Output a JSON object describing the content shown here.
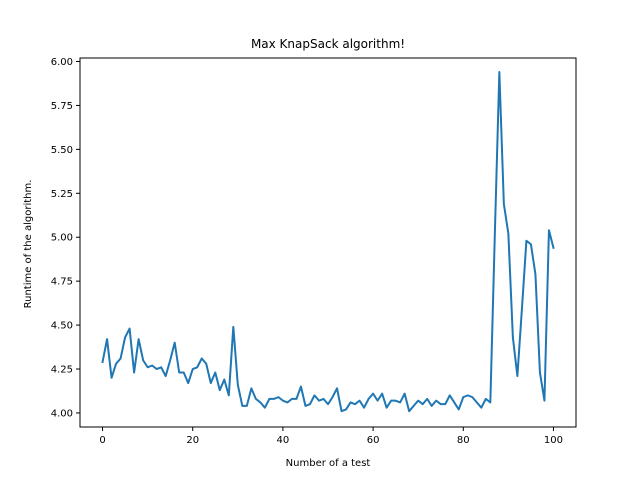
{
  "chart_data": {
    "type": "line",
    "title": "Max KnapSack algorithm!",
    "xlabel": "Number of a test",
    "ylabel": "Runtime of the algorithm.",
    "xlim": [
      -5,
      105
    ],
    "ylim": [
      3.92,
      6.02
    ],
    "xticks": [
      0,
      20,
      40,
      60,
      80,
      100
    ],
    "yticks": [
      4.0,
      4.25,
      4.5,
      4.75,
      5.0,
      5.25,
      5.5,
      5.75,
      6.0
    ],
    "ytick_labels": [
      "4.00",
      "4.25",
      "4.50",
      "4.75",
      "5.00",
      "5.25",
      "5.50",
      "5.75",
      "6.00"
    ],
    "grid": false,
    "line_color": "#1f77b4",
    "series": [
      {
        "x": [
          0,
          1,
          2,
          3,
          4,
          5,
          6,
          7,
          8,
          9,
          10,
          11,
          12,
          13,
          14,
          15,
          16,
          17,
          18,
          19,
          20,
          21,
          22,
          23,
          24,
          25,
          26,
          27,
          28,
          29,
          30,
          31,
          32,
          33,
          34,
          35,
          36,
          37,
          38,
          39,
          40,
          41,
          42,
          43,
          44,
          45,
          46,
          47,
          48,
          49,
          50,
          51,
          52,
          53,
          54,
          55,
          56,
          57,
          58,
          59,
          60,
          61,
          62,
          63,
          64,
          65,
          66,
          67,
          68,
          69,
          70,
          71,
          72,
          73,
          74,
          75,
          76,
          77,
          78,
          79,
          80,
          81,
          82,
          83,
          84,
          85,
          86,
          87,
          88,
          89,
          90,
          91,
          92,
          93,
          94,
          95,
          96,
          97,
          98,
          99,
          100
        ],
        "values": [
          4.29,
          4.42,
          4.2,
          4.28,
          4.31,
          4.43,
          4.48,
          4.23,
          4.42,
          4.3,
          4.26,
          4.27,
          4.25,
          4.26,
          4.21,
          4.3,
          4.4,
          4.23,
          4.23,
          4.17,
          4.25,
          4.26,
          4.31,
          4.28,
          4.17,
          4.23,
          4.13,
          4.19,
          4.1,
          4.49,
          4.16,
          4.04,
          4.04,
          4.14,
          4.08,
          4.06,
          4.03,
          4.08,
          4.08,
          4.09,
          4.07,
          4.06,
          4.08,
          4.08,
          4.15,
          4.04,
          4.05,
          4.1,
          4.07,
          4.08,
          4.05,
          4.09,
          4.14,
          4.01,
          4.02,
          4.06,
          4.05,
          4.07,
          4.03,
          4.08,
          4.11,
          4.07,
          4.11,
          4.03,
          4.07,
          4.07,
          4.06,
          4.11,
          4.01,
          4.04,
          4.07,
          4.05,
          4.08,
          4.04,
          4.07,
          4.05,
          4.05,
          4.1,
          4.06,
          4.02,
          4.09,
          4.1,
          4.09,
          4.06,
          4.03,
          4.08,
          4.06,
          5.02,
          5.94,
          5.19,
          5.02,
          4.43,
          4.21,
          4.59,
          4.98,
          4.96,
          4.79,
          4.23,
          4.07,
          5.04,
          4.94
        ]
      }
    ]
  }
}
